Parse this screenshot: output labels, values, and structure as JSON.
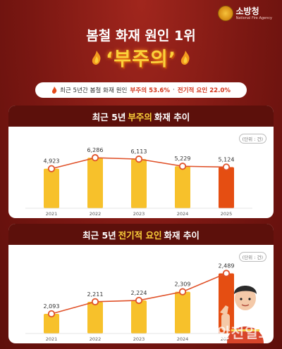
{
  "logo": {
    "name": "소방청",
    "sub": "National Fire Agency"
  },
  "headline": "봄철 화재 원인 1위",
  "keyword": "‘부주의’",
  "summary": {
    "prefix": "최근 5년간 봄철 화재 원인",
    "item1": "부주의 53.6%",
    "sep": "·",
    "item2": "전기적 요인 22.0%"
  },
  "watermark": "안전일보",
  "chart_data": [
    {
      "type": "bar",
      "title_prefix": "최근 5년",
      "title_highlight": "부주의",
      "title_suffix": "화재 추이",
      "unit": "(단위 : 건)",
      "categories": [
        "2021",
        "2022",
        "2023",
        "2024",
        "2025"
      ],
      "values": [
        4923,
        6286,
        6113,
        5229,
        5124
      ],
      "value_labels": [
        "4,923",
        "6,286",
        "6,113",
        "5,229",
        "5,124"
      ],
      "highlight_index": 4,
      "ylim": [
        0,
        7000
      ],
      "colors": {
        "bar": "#f7c12b",
        "highlight": "#e54e12",
        "line": "#e0522a"
      }
    },
    {
      "type": "bar",
      "title_prefix": "최근 5년",
      "title_highlight": "전기적 요인",
      "title_suffix": "화재 추이",
      "unit": "(단위 : 건)",
      "categories": [
        "2021",
        "2022",
        "2023",
        "2024",
        "2025"
      ],
      "values": [
        2093,
        2211,
        2224,
        2309,
        2489
      ],
      "value_labels": [
        "2,093",
        "2,211",
        "2,224",
        "2,309",
        "2,489"
      ],
      "highlight_index": 4,
      "ylim": [
        1900,
        2520
      ],
      "colors": {
        "bar": "#f7c12b",
        "highlight": "#e54e12",
        "line": "#e0522a"
      }
    }
  ]
}
